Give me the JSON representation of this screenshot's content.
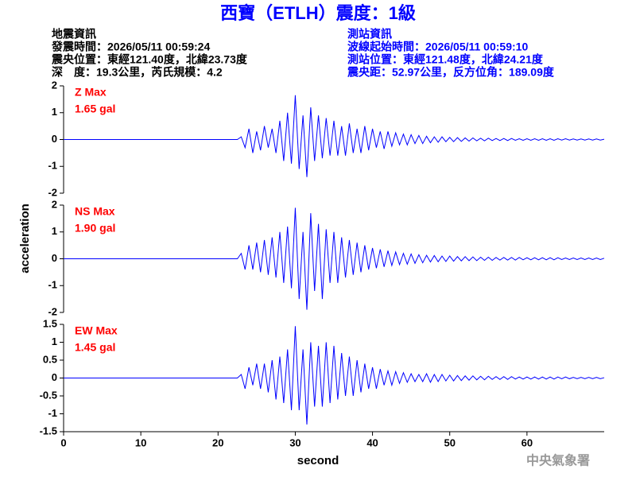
{
  "header": {
    "title": "西寶（ETLH）震度：1級",
    "left": [
      "地震資訊",
      "發震時間：2026/05/11 00:59:24",
      "震央位置：東經121.40度，北緯23.73度",
      "深　度：19.3公里，芮氏規模：4.2"
    ],
    "right": [
      "測站資訊",
      "波線起始時間：2026/05/11 00:59:10",
      "測站位置：東經121.48度，北緯24.21度",
      "震央距：52.97公里，反方位角：189.09度"
    ],
    "y_label": "acceleration",
    "x_label": "second",
    "footer": "中央氣象署"
  },
  "chart_data": [
    {
      "type": "line",
      "annotations": [
        "Z Max",
        "1.65 gal"
      ],
      "color": "#0000ff",
      "annotation_color": "#ff0000",
      "xlim": [
        0,
        70
      ],
      "ylim": [
        -2,
        2
      ],
      "yticks": [
        -2,
        -1,
        0,
        1,
        2
      ],
      "x": [
        0,
        22.5,
        23,
        23.5,
        24,
        24.5,
        25,
        25.5,
        26,
        26.5,
        27,
        27.5,
        28,
        28.5,
        29,
        29.5,
        30,
        30.5,
        31,
        31.5,
        32,
        32.5,
        33,
        33.5,
        34,
        34.5,
        35,
        35.5,
        36,
        36.5,
        37,
        37.5,
        38,
        38.5,
        39,
        39.5,
        40,
        40.5,
        41,
        41.5,
        42,
        42.5,
        43,
        43.5,
        44,
        44.5,
        45,
        45.5,
        46,
        46.5,
        47,
        47.5,
        48,
        48.5,
        49,
        49.5,
        50,
        50.5,
        51,
        51.5,
        52,
        52.5,
        53,
        53.5,
        54,
        54.5,
        55,
        55.5,
        56,
        56.5,
        57,
        57.5,
        58,
        58.5,
        59,
        59.5,
        60,
        60.5,
        61,
        61.5,
        62,
        62.5,
        63,
        63.5,
        64,
        64.5,
        65,
        65.5,
        66,
        66.5,
        67,
        67.5,
        68,
        68.5,
        69,
        69.5,
        70
      ],
      "values": [
        0,
        0,
        0.1,
        -0.3,
        0.4,
        -0.5,
        0.3,
        -0.4,
        0.5,
        -0.3,
        0.4,
        -0.5,
        0.7,
        -0.8,
        1.0,
        -0.9,
        1.65,
        -1.1,
        0.9,
        -1.4,
        1.2,
        -0.8,
        0.9,
        -0.7,
        0.8,
        -0.6,
        0.7,
        -0.6,
        0.5,
        -0.6,
        0.6,
        -0.5,
        0.4,
        -0.5,
        0.5,
        -0.4,
        0.4,
        -0.3,
        0.3,
        -0.35,
        0.3,
        -0.25,
        0.25,
        -0.2,
        0.2,
        -0.2,
        0.18,
        -0.15,
        0.15,
        -0.15,
        0.12,
        -0.12,
        0.1,
        -0.1,
        0.1,
        -0.08,
        0.08,
        -0.08,
        0.07,
        -0.07,
        0.06,
        -0.06,
        0.06,
        -0.05,
        0.05,
        -0.05,
        0.05,
        -0.04,
        0.04,
        -0.04,
        0.04,
        -0.04,
        0.04,
        -0.03,
        0.03,
        -0.03,
        0.03,
        -0.03,
        0.03,
        -0.03,
        0.03,
        -0.03,
        0.03,
        -0.03,
        0.03,
        -0.02,
        0.03,
        -0.02,
        0.02,
        -0.02,
        0.02,
        -0.02,
        0.02,
        -0.02,
        0.02,
        -0.02,
        0.01
      ]
    },
    {
      "type": "line",
      "annotations": [
        "NS Max",
        "1.90 gal"
      ],
      "color": "#0000ff",
      "annotation_color": "#ff0000",
      "xlim": [
        0,
        70
      ],
      "ylim": [
        -2,
        2
      ],
      "yticks": [
        -2,
        -1,
        0,
        1,
        2
      ],
      "x": [
        0,
        22.5,
        23,
        23.5,
        24,
        24.5,
        25,
        25.5,
        26,
        26.5,
        27,
        27.5,
        28,
        28.5,
        29,
        29.5,
        30,
        30.5,
        31,
        31.5,
        32,
        32.5,
        33,
        33.5,
        34,
        34.5,
        35,
        35.5,
        36,
        36.5,
        37,
        37.5,
        38,
        38.5,
        39,
        39.5,
        40,
        40.5,
        41,
        41.5,
        42,
        42.5,
        43,
        43.5,
        44,
        44.5,
        45,
        45.5,
        46,
        46.5,
        47,
        47.5,
        48,
        48.5,
        49,
        49.5,
        50,
        50.5,
        51,
        51.5,
        52,
        52.5,
        53,
        53.5,
        54,
        54.5,
        55,
        55.5,
        56,
        56.5,
        57,
        57.5,
        58,
        58.5,
        59,
        59.5,
        60,
        60.5,
        61,
        61.5,
        62,
        62.5,
        63,
        63.5,
        64,
        64.5,
        65,
        65.5,
        66,
        66.5,
        67,
        67.5,
        68,
        68.5,
        69,
        69.5,
        70
      ],
      "values": [
        0,
        0,
        0.2,
        -0.4,
        0.5,
        -0.4,
        0.6,
        -0.5,
        0.7,
        -0.6,
        0.8,
        -0.7,
        1.0,
        -0.9,
        1.2,
        -1.1,
        1.9,
        -1.5,
        1.0,
        -1.9,
        1.7,
        -1.2,
        1.3,
        -1.5,
        1.1,
        -0.9,
        1.0,
        -0.9,
        0.8,
        -0.7,
        0.7,
        -0.6,
        0.6,
        -0.5,
        0.5,
        -0.4,
        0.4,
        -0.35,
        0.35,
        -0.3,
        0.3,
        -0.25,
        0.25,
        -0.22,
        0.2,
        -0.2,
        0.18,
        -0.17,
        0.15,
        -0.15,
        0.13,
        -0.12,
        0.12,
        -0.11,
        0.1,
        -0.1,
        0.1,
        -0.09,
        0.08,
        -0.08,
        0.08,
        -0.07,
        0.07,
        -0.07,
        0.06,
        -0.06,
        0.06,
        -0.06,
        0.05,
        -0.05,
        0.05,
        -0.05,
        0.05,
        -0.05,
        0.05,
        -0.04,
        0.04,
        -0.04,
        0.04,
        -0.04,
        0.04,
        -0.04,
        0.04,
        -0.04,
        0.04,
        -0.03,
        0.03,
        -0.03,
        0.03,
        -0.03,
        0.03,
        -0.03,
        0.03,
        -0.03,
        0.03,
        -0.03,
        0.02
      ]
    },
    {
      "type": "line",
      "annotations": [
        "EW Max",
        "1.45 gal"
      ],
      "color": "#0000ff",
      "annotation_color": "#ff0000",
      "xlim": [
        0,
        70
      ],
      "ylim": [
        -1.5,
        1.5
      ],
      "yticks": [
        -1.5,
        -1,
        -0.5,
        0,
        0.5,
        1,
        1.5
      ],
      "xticks": [
        0,
        10,
        20,
        30,
        40,
        50,
        60
      ],
      "x": [
        0,
        22.5,
        23,
        23.5,
        24,
        24.5,
        25,
        25.5,
        26,
        26.5,
        27,
        27.5,
        28,
        28.5,
        29,
        29.5,
        30,
        30.5,
        31,
        31.5,
        32,
        32.5,
        33,
        33.5,
        34,
        34.5,
        35,
        35.5,
        36,
        36.5,
        37,
        37.5,
        38,
        38.5,
        39,
        39.5,
        40,
        40.5,
        41,
        41.5,
        42,
        42.5,
        43,
        43.5,
        44,
        44.5,
        45,
        45.5,
        46,
        46.5,
        47,
        47.5,
        48,
        48.5,
        49,
        49.5,
        50,
        50.5,
        51,
        51.5,
        52,
        52.5,
        53,
        53.5,
        54,
        54.5,
        55,
        55.5,
        56,
        56.5,
        57,
        57.5,
        58,
        58.5,
        59,
        59.5,
        60,
        60.5,
        61,
        61.5,
        62,
        62.5,
        63,
        63.5,
        64,
        64.5,
        65,
        65.5,
        66,
        66.5,
        67,
        67.5,
        68,
        68.5,
        69,
        69.5,
        70
      ],
      "values": [
        0,
        0,
        0.1,
        -0.3,
        0.3,
        -0.2,
        0.4,
        -0.3,
        0.4,
        -0.4,
        0.5,
        -0.6,
        0.6,
        -0.7,
        0.8,
        -0.9,
        1.45,
        -0.9,
        0.8,
        -1.3,
        1.0,
        -0.8,
        0.9,
        -0.8,
        1.0,
        -0.7,
        0.9,
        -0.6,
        0.7,
        -0.5,
        0.6,
        -0.5,
        0.5,
        -0.4,
        0.4,
        -0.3,
        0.3,
        -0.3,
        0.25,
        -0.2,
        0.2,
        -0.2,
        0.18,
        -0.15,
        0.15,
        -0.12,
        0.12,
        -0.1,
        0.1,
        -0.1,
        0.12,
        -0.12,
        0.1,
        -0.1,
        0.1,
        -0.08,
        0.08,
        -0.08,
        0.07,
        -0.07,
        0.06,
        -0.06,
        0.06,
        -0.05,
        0.05,
        -0.05,
        0.05,
        -0.04,
        0.04,
        -0.04,
        0.04,
        -0.04,
        0.04,
        -0.03,
        0.03,
        -0.03,
        0.03,
        -0.03,
        0.03,
        -0.03,
        0.03,
        -0.03,
        0.03,
        -0.03,
        0.03,
        -0.02,
        0.03,
        -0.02,
        0.02,
        -0.02,
        0.02,
        -0.02,
        0.02,
        -0.02,
        0.02,
        -0.02,
        0.01
      ]
    }
  ]
}
